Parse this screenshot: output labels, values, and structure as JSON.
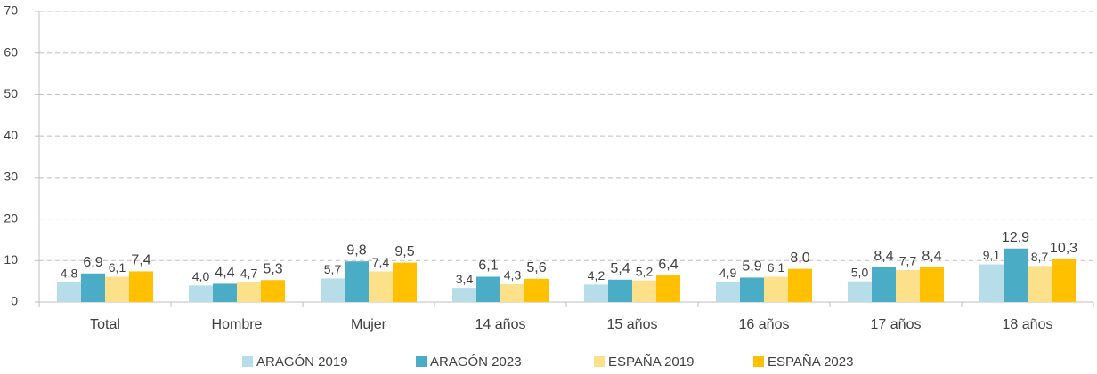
{
  "chart_data": {
    "type": "bar",
    "categories": [
      "Total",
      "Hombre",
      "Mujer",
      "14 años",
      "15 años",
      "16 años",
      "17 años",
      "18 años"
    ],
    "series": [
      {
        "name": "ARAGÓN 2019",
        "color": "#b7dde8",
        "values": [
          4.8,
          4.0,
          5.7,
          3.4,
          4.2,
          4.9,
          5.0,
          9.1
        ],
        "value_labels": [
          "4,8",
          "4,0",
          "5,7",
          "3,4",
          "4,2",
          "4,9",
          "5,0",
          "9,1"
        ]
      },
      {
        "name": "ARAGÓN 2023",
        "color": "#4bacc6",
        "values": [
          6.9,
          4.4,
          9.8,
          6.1,
          5.4,
          5.9,
          8.4,
          12.9
        ],
        "value_labels": [
          "6,9",
          "4,4",
          "9,8",
          "6,1",
          "5,4",
          "5,9",
          "8,4",
          "12,9"
        ]
      },
      {
        "name": "ESPAÑA 2019",
        "color": "#fde08a",
        "values": [
          6.1,
          4.7,
          7.4,
          4.3,
          5.2,
          6.1,
          7.7,
          8.7
        ],
        "value_labels": [
          "6,1",
          "4,7",
          "7,4",
          "4,3",
          "5,2",
          "6,1",
          "7,7",
          "8,7"
        ]
      },
      {
        "name": "ESPAÑA 2023",
        "color": "#ffc000",
        "values": [
          7.4,
          5.3,
          9.5,
          5.6,
          6.4,
          8.0,
          8.4,
          10.3
        ],
        "value_labels": [
          "7,4",
          "5,3",
          "9,5",
          "5,6",
          "6,4",
          "8,0",
          "8,4",
          "10,3"
        ]
      }
    ],
    "ylim": [
      0,
      70
    ],
    "yticks": [
      0,
      10,
      20,
      30,
      40,
      50,
      60,
      70
    ],
    "grid": true,
    "legend": "bottom"
  }
}
